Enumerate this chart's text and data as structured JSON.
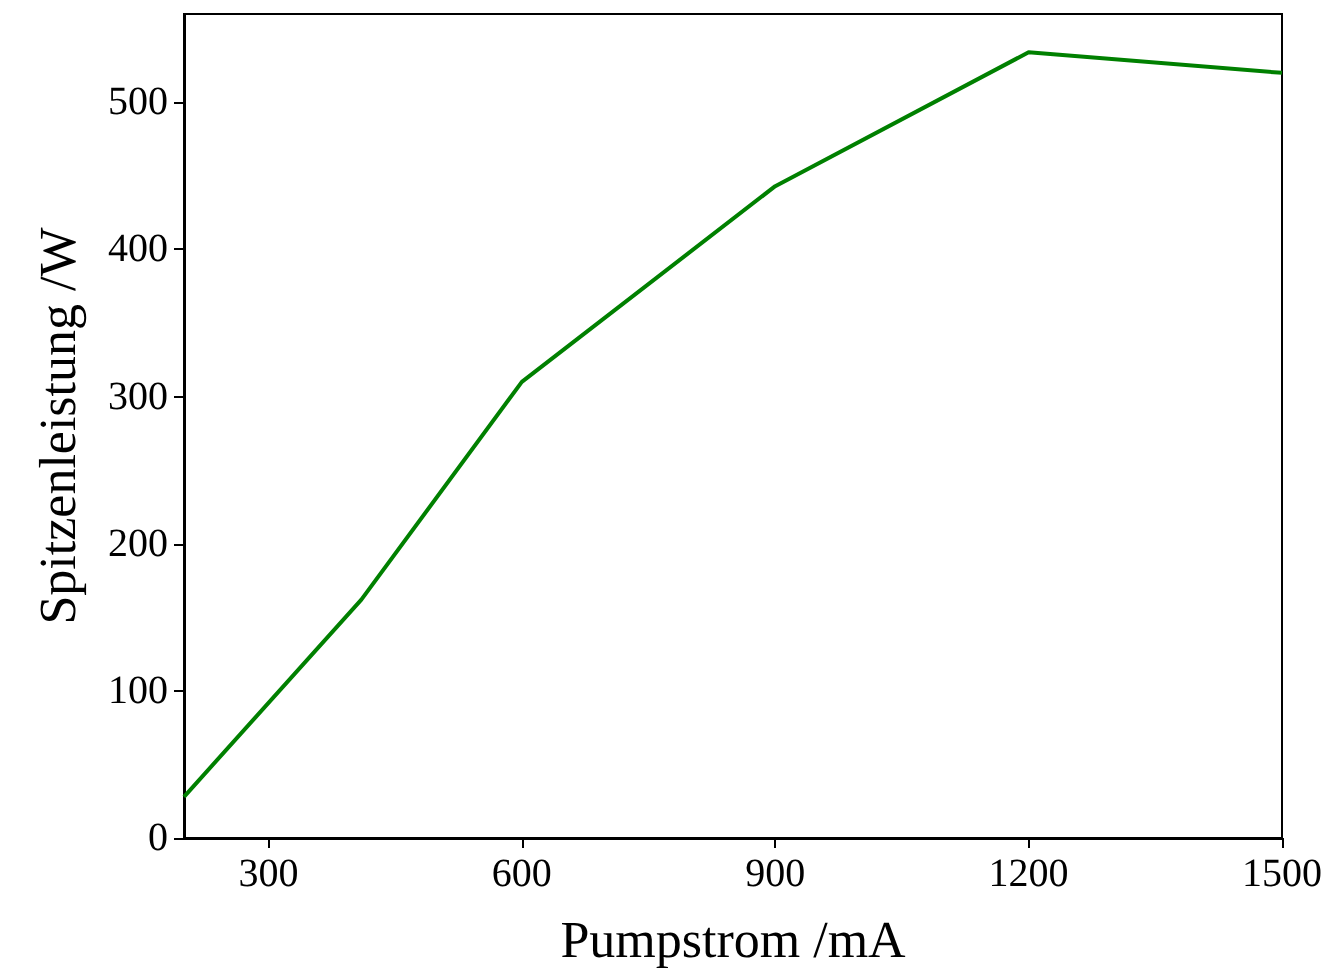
{
  "chart_data": {
    "type": "line",
    "xlabel": "Pumpstrom /mA",
    "ylabel": "Spitzenleistung /W",
    "x": [
      200,
      410,
      600,
      900,
      1200,
      1500
    ],
    "series": [
      {
        "color": "#008000",
        "values": [
          28,
          162,
          310,
          443,
          534,
          520
        ]
      }
    ],
    "xlim": [
      200,
      1500
    ],
    "xticks": [
      300,
      600,
      900,
      1200,
      1500
    ],
    "ylim": [
      0,
      560
    ],
    "yticks": [
      0,
      100,
      200,
      300,
      400,
      500
    ],
    "marker": "none",
    "line_style": "solid"
  }
}
